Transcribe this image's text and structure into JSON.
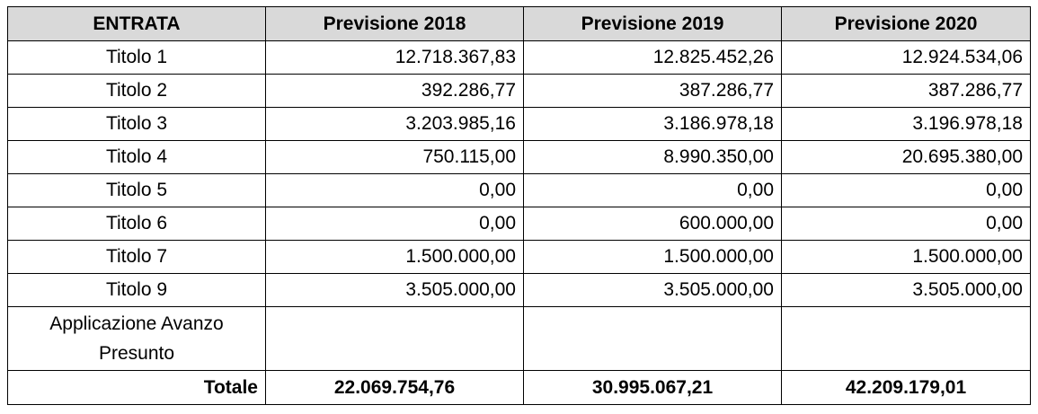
{
  "table": {
    "headers": [
      "ENTRATA",
      "Previsione 2018",
      "Previsione 2019",
      "Previsione 2020"
    ],
    "rows": [
      {
        "label": "Titolo 1",
        "values": [
          "12.718.367,83",
          "12.825.452,26",
          "12.924.534,06"
        ]
      },
      {
        "label": "Titolo 2",
        "values": [
          "392.286,77",
          "387.286,77",
          "387.286,77"
        ]
      },
      {
        "label": "Titolo 3",
        "values": [
          "3.203.985,16",
          "3.186.978,18",
          "3.196.978,18"
        ]
      },
      {
        "label": "Titolo 4",
        "values": [
          "750.115,00",
          "8.990.350,00",
          "20.695.380,00"
        ]
      },
      {
        "label": "Titolo 5",
        "values": [
          "0,00",
          "0,00",
          "0,00"
        ]
      },
      {
        "label": "Titolo 6",
        "values": [
          "0,00",
          "600.000,00",
          "0,00"
        ]
      },
      {
        "label": "Titolo 7",
        "values": [
          "1.500.000,00",
          "1.500.000,00",
          "1.500.000,00"
        ]
      },
      {
        "label": "Titolo 9",
        "values": [
          "3.505.000,00",
          "3.505.000,00",
          "3.505.000,00"
        ]
      },
      {
        "label": "Applicazione Avanzo Presunto",
        "values": [
          "",
          "",
          ""
        ]
      }
    ],
    "total": {
      "label": "Totale",
      "values": [
        "22.069.754,76",
        "30.995.067,21",
        "42.209.179,01"
      ]
    }
  },
  "colors": {
    "header_bg": "#d9d9d9",
    "border": "#000000",
    "text": "#000000"
  }
}
